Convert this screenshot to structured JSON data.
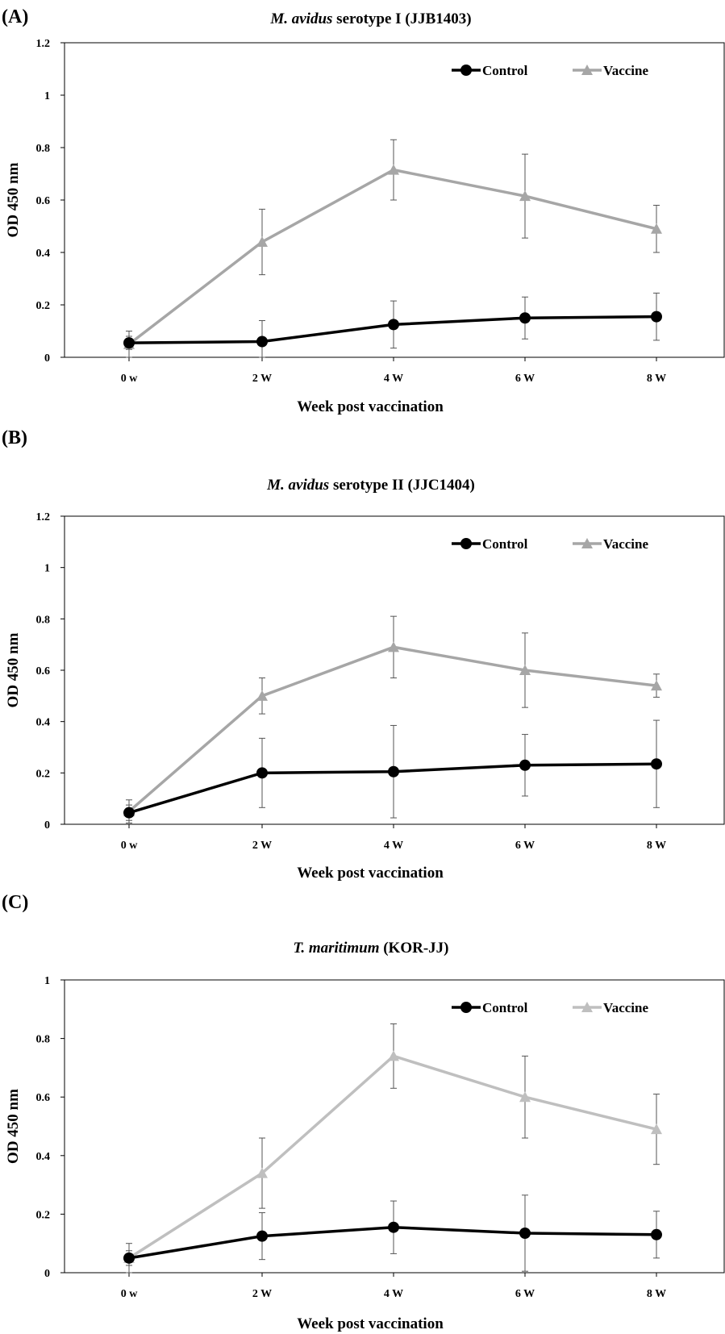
{
  "chart_data": [
    {
      "type": "line",
      "panel_label": "(A)",
      "title_italic": "M. avidus",
      "title_rest": " serotype I (JJB1403)",
      "xlabel": "Week post vaccination",
      "ylabel": "OD 450 nm",
      "categories": [
        "0 w",
        "2 W",
        "4 W",
        "6 W",
        "8 W"
      ],
      "ylim": [
        0,
        1.2
      ],
      "yticks": [
        "0",
        "0.2",
        "0.4",
        "0.6",
        "0.8",
        "1",
        "1.2"
      ],
      "legend_position": "top-right",
      "series": [
        {
          "name": "Control",
          "color": "#000000",
          "marker": "circle",
          "values": [
            0.055,
            0.06,
            0.125,
            0.15,
            0.155
          ],
          "errors": [
            0.025,
            0.08,
            0.09,
            0.08,
            0.09
          ]
        },
        {
          "name": "Vaccine",
          "color": "#a6a6a6",
          "marker": "triangle",
          "values": [
            0.05,
            0.44,
            0.715,
            0.615,
            0.49
          ],
          "errors": [
            0.05,
            0.125,
            0.115,
            0.16,
            0.09
          ]
        }
      ]
    },
    {
      "type": "line",
      "panel_label": "(B)",
      "title_italic": "M. avidus",
      "title_rest": "  serotype II (JJC1404)",
      "xlabel": "Week post vaccination",
      "ylabel": "OD 450 nm",
      "categories": [
        "0 w",
        "2 W",
        "4 W",
        "6 W",
        "8 W"
      ],
      "ylim": [
        0,
        1.2
      ],
      "yticks": [
        "0",
        "0.2",
        "0.4",
        "0.6",
        "0.8",
        "1",
        "1.2"
      ],
      "legend_position": "top-right",
      "series": [
        {
          "name": "Control",
          "color": "#000000",
          "marker": "circle",
          "values": [
            0.045,
            0.2,
            0.205,
            0.23,
            0.235
          ],
          "errors": [
            0.03,
            0.135,
            0.18,
            0.12,
            0.17
          ]
        },
        {
          "name": "Vaccine",
          "color": "#a6a6a6",
          "marker": "triangle",
          "values": [
            0.05,
            0.5,
            0.69,
            0.6,
            0.54
          ],
          "errors": [
            0.045,
            0.07,
            0.12,
            0.145,
            0.045
          ]
        }
      ]
    },
    {
      "type": "line",
      "panel_label": "(C)",
      "title_italic": "T. maritimum",
      "title_rest": " (KOR-JJ)",
      "xlabel": "Week post vaccination",
      "ylabel": "OD 450 nm",
      "categories": [
        "0 w",
        "2 W",
        "4 W",
        "6 W",
        "8 W"
      ],
      "ylim": [
        0,
        1
      ],
      "yticks": [
        "0",
        "0.2",
        "0.4",
        "0.6",
        "0.8",
        "1"
      ],
      "legend_position": "top-right",
      "series": [
        {
          "name": "Control",
          "color": "#000000",
          "marker": "circle",
          "values": [
            0.05,
            0.125,
            0.155,
            0.135,
            0.13
          ],
          "errors": [
            0.025,
            0.08,
            0.09,
            0.13,
            0.08
          ]
        },
        {
          "name": "Vaccine",
          "color": "#bfbfbf",
          "marker": "triangle",
          "values": [
            0.05,
            0.34,
            0.74,
            0.6,
            0.49
          ],
          "errors": [
            0.05,
            0.12,
            0.11,
            0.14,
            0.12
          ]
        }
      ]
    }
  ]
}
